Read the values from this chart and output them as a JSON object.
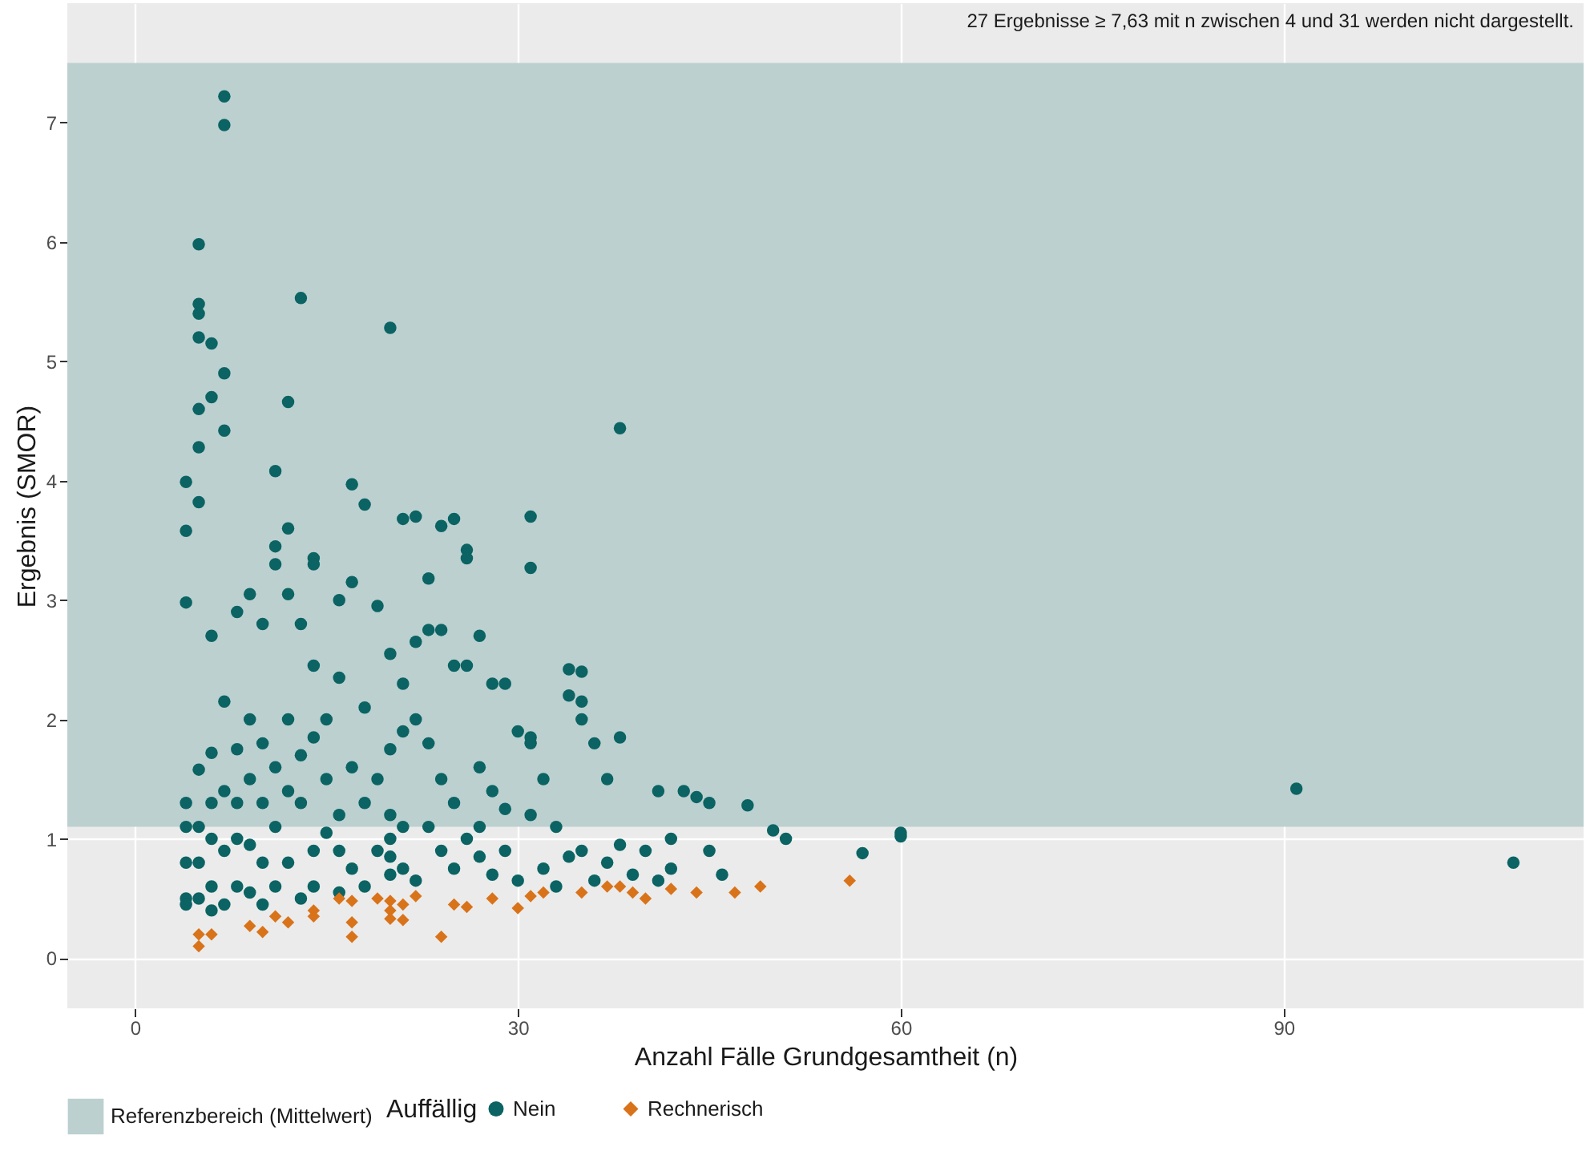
{
  "chart_data": {
    "type": "scatter",
    "xlabel": "Anzahl Fälle Grundgesamtheit (n)",
    "ylabel": "Ergebnis (SMOR)",
    "legend_title": "Auffällig",
    "legend": "bottom",
    "grid": true,
    "annotations": [
      "27 Ergebnisse ≥ 7,63 mit n zwischen 4 und 31 werden nicht dargestellt."
    ],
    "xlim": [
      -5.3,
      113.5
    ],
    "xticks": [
      0,
      30,
      60,
      90
    ],
    "ylim": [
      -0.42,
      8.0
    ],
    "yticks": [
      0,
      1,
      2,
      3,
      4,
      5,
      6,
      7
    ],
    "bands": [
      {
        "axis": "y",
        "from": 1.1,
        "to": 7.5,
        "label": "Referenzbereich (Mittelwert)",
        "color": "#bcd0d0"
      }
    ],
    "series": [
      {
        "name": "Nein",
        "color": "#0b6363",
        "marker": "circle",
        "x": [
          7,
          7,
          5,
          5,
          5,
          5,
          6,
          13,
          20,
          7,
          6,
          7,
          5,
          5,
          12,
          11,
          38,
          4,
          5,
          4,
          4,
          6,
          17,
          18,
          21,
          22,
          24,
          25,
          31,
          31,
          23,
          26,
          26,
          12,
          14,
          14,
          11,
          11,
          9,
          8,
          16,
          17,
          19,
          12,
          13,
          10,
          20,
          22,
          23,
          24,
          27,
          25,
          26,
          21,
          16,
          14,
          9,
          7,
          8,
          6,
          5,
          34,
          35,
          34,
          35,
          35,
          36,
          30,
          28,
          29,
          31,
          31,
          38,
          37,
          41,
          43,
          44,
          45,
          48,
          50,
          51,
          57,
          60,
          60,
          91,
          108,
          45,
          46,
          42,
          42,
          40,
          38,
          37,
          35,
          33,
          32,
          31,
          29,
          28,
          27,
          27,
          25,
          24,
          23,
          22,
          21,
          20,
          20,
          20,
          20,
          20,
          21,
          21,
          19,
          19,
          18,
          18,
          17,
          17,
          16,
          16,
          15,
          15,
          15,
          14,
          14,
          13,
          13,
          12,
          12,
          12,
          11,
          11,
          11,
          10,
          10,
          10,
          9,
          9,
          9,
          8,
          8,
          8,
          7,
          7,
          7,
          6,
          6,
          6,
          6,
          5,
          5,
          5,
          4,
          4,
          4,
          4,
          4,
          22,
          23,
          24,
          25,
          26,
          27,
          28,
          29,
          30,
          32,
          33,
          34,
          36,
          39,
          41,
          18,
          16,
          14,
          13,
          10
        ],
        "values": [
          7.22,
          6.98,
          5.98,
          5.48,
          5.4,
          5.2,
          5.15,
          5.53,
          5.28,
          4.9,
          4.7,
          4.42,
          4.6,
          4.28,
          4.66,
          4.08,
          4.44,
          3.99,
          3.82,
          3.58,
          2.98,
          2.7,
          3.97,
          3.8,
          3.68,
          3.7,
          3.62,
          3.68,
          3.7,
          3.27,
          3.18,
          3.42,
          3.35,
          3.6,
          3.35,
          3.3,
          3.45,
          3.3,
          3.05,
          2.9,
          3.0,
          3.15,
          2.95,
          3.05,
          2.8,
          2.8,
          2.55,
          2.65,
          2.75,
          2.75,
          2.7,
          2.45,
          2.45,
          2.3,
          2.35,
          2.45,
          2.0,
          2.15,
          1.75,
          1.72,
          1.58,
          2.42,
          2.4,
          2.2,
          2.15,
          2.0,
          1.8,
          1.9,
          2.3,
          2.3,
          1.85,
          1.8,
          1.85,
          1.5,
          1.4,
          1.4,
          1.35,
          1.3,
          1.28,
          1.07,
          1.0,
          0.88,
          1.05,
          1.02,
          1.42,
          0.8,
          0.9,
          0.7,
          1.0,
          0.75,
          0.9,
          0.95,
          0.8,
          0.9,
          1.1,
          1.5,
          1.2,
          1.25,
          1.4,
          1.6,
          0.85,
          1.3,
          1.5,
          1.8,
          2.0,
          1.9,
          1.75,
          1.2,
          1.0,
          0.85,
          0.7,
          0.75,
          1.1,
          1.5,
          0.9,
          2.1,
          1.3,
          1.6,
          0.75,
          1.2,
          0.9,
          2.0,
          1.5,
          1.05,
          1.85,
          0.9,
          1.7,
          1.3,
          2.0,
          1.4,
          0.8,
          1.6,
          1.1,
          0.6,
          1.8,
          1.3,
          0.8,
          1.5,
          0.95,
          0.55,
          1.3,
          1.0,
          0.6,
          1.4,
          0.9,
          0.45,
          1.3,
          1.0,
          0.6,
          0.4,
          1.1,
          0.8,
          0.5,
          1.3,
          1.1,
          0.8,
          0.5,
          0.45,
          0.65,
          1.1,
          0.9,
          0.75,
          1.0,
          1.1,
          0.7,
          0.9,
          0.65,
          0.75,
          0.6,
          0.85,
          0.65,
          0.7,
          0.65,
          0.6,
          0.55,
          0.6,
          0.5,
          0.45
        ]
      },
      {
        "name": "Rechnerisch",
        "color": "#d9731a",
        "marker": "diamond",
        "x": [
          5,
          5,
          6,
          9,
          10,
          11,
          12,
          14,
          14,
          17,
          17,
          17,
          20,
          20,
          20,
          21,
          21,
          22,
          24,
          25,
          26,
          28,
          30,
          31,
          32,
          35,
          37,
          38,
          39,
          40,
          42,
          44,
          47,
          49,
          56,
          16,
          19
        ],
        "values": [
          0.2,
          0.1,
          0.2,
          0.27,
          0.22,
          0.35,
          0.3,
          0.4,
          0.35,
          0.48,
          0.3,
          0.18,
          0.48,
          0.4,
          0.33,
          0.45,
          0.32,
          0.52,
          0.18,
          0.45,
          0.43,
          0.5,
          0.42,
          0.52,
          0.55,
          0.55,
          0.6,
          0.6,
          0.55,
          0.5,
          0.58,
          0.55,
          0.55,
          0.6,
          0.65,
          0.5,
          0.5
        ]
      }
    ]
  }
}
